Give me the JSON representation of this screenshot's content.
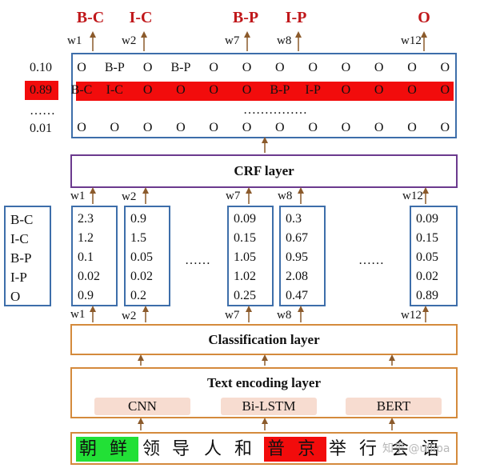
{
  "top_tags": [
    "B-C",
    "I-C",
    "B-P",
    "I-P",
    "O"
  ],
  "top_w": [
    "w1",
    "w2",
    "w7",
    "w8",
    "w12"
  ],
  "scores": [
    "0.10",
    "0.89",
    "……",
    "0.01"
  ],
  "path_row1": [
    "O",
    "B-P",
    "O",
    "B-P",
    "O",
    "O",
    "O",
    "O",
    "O",
    "O",
    "O",
    "O"
  ],
  "path_row2": [
    "B-C",
    "I-C",
    "O",
    "O",
    "O",
    "O",
    "B-P",
    "I-P",
    "O",
    "O",
    "O",
    "O"
  ],
  "path_dots": "……………",
  "path_row3": [
    "O",
    "O",
    "O",
    "O",
    "O",
    "O",
    "O",
    "O",
    "O",
    "O",
    "O",
    "O"
  ],
  "crf_label": "CRF layer",
  "mid_w": [
    "w1",
    "w2",
    "w7",
    "w8",
    "w12"
  ],
  "labels": [
    "B-C",
    "I-C",
    "B-P",
    "I-P",
    "O"
  ],
  "columns": [
    [
      "2.3",
      "1.2",
      "0.1",
      "0.02",
      "0.9"
    ],
    [
      "0.9",
      "1.5",
      "0.05",
      "0.02",
      "0.2"
    ],
    [
      "0.09",
      "0.15",
      "1.05",
      "1.02",
      "0.25"
    ],
    [
      "0.3",
      "0.67",
      "0.95",
      "2.08",
      "0.47"
    ],
    [
      "0.09",
      "0.15",
      "0.05",
      "0.02",
      "0.89"
    ]
  ],
  "ellipsis": "……",
  "bottom_w": [
    "w1",
    "w2",
    "w7",
    "w8",
    "w12"
  ],
  "classification_label": "Classification layer",
  "encoding_label": "Text encoding layer",
  "encoders": [
    "CNN",
    "Bi-LSTM",
    "BERT"
  ],
  "chars": [
    "朝",
    "鲜",
    "领",
    "导",
    "人",
    "和",
    "普",
    "京",
    "举",
    "行",
    "会",
    "语"
  ],
  "watermark": "知乎 @ullipa",
  "colors": {
    "highlight_red": "#f20c0c",
    "highlight_green": "#22e036",
    "tag_red": "#c0171a",
    "box_blue": "#3d6eaa",
    "crf_purple": "#6b3a8e",
    "layer_orange": "#d48a3c",
    "arrow_brown": "#8b5a2b",
    "pill_fill": "#f7dcd0"
  }
}
